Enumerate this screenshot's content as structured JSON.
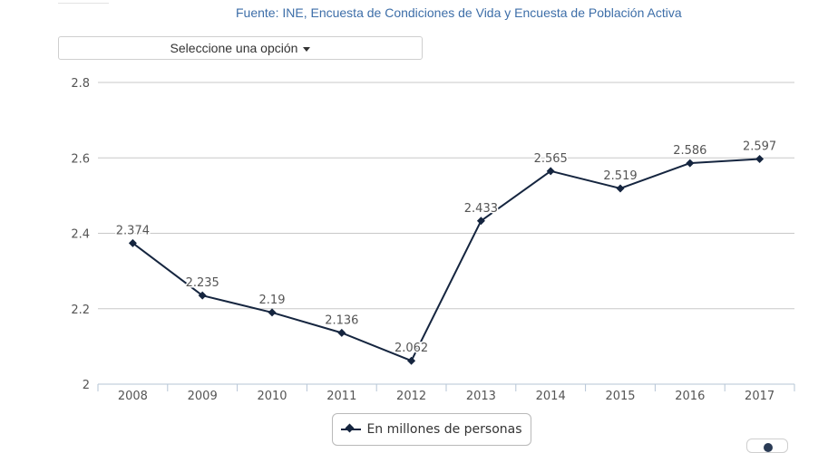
{
  "source_text": "Fuente: INE, Encuesta de Condiciones de Vida y Encuesta de Población Activa",
  "selector": {
    "label": "Seleccione una opción",
    "icon": "caret-down-icon"
  },
  "legend": {
    "label": "En millones de personas",
    "icon": "line-diamond-marker-icon"
  },
  "colors": {
    "series": "#15253f",
    "grid": "#c8c8c8",
    "axis_text": "#555555",
    "source": "#3d6ea8"
  },
  "chart_data": {
    "type": "line",
    "categories": [
      "2008",
      "2009",
      "2010",
      "2011",
      "2012",
      "2013",
      "2014",
      "2015",
      "2016",
      "2017"
    ],
    "series": [
      {
        "name": "En millones de personas",
        "values": [
          2.374,
          2.235,
          2.19,
          2.136,
          2.062,
          2.433,
          2.565,
          2.519,
          2.586,
          2.597
        ],
        "labels": [
          "2.374",
          "2.235",
          "2.19",
          "2.136",
          "2.062",
          "2.433",
          "2.565",
          "2.519",
          "2.586",
          "2.597"
        ]
      }
    ],
    "ylim": [
      2,
      2.8
    ],
    "yticks": [
      "2",
      "2.2",
      "2.4",
      "2.6",
      "2.8"
    ],
    "grid": true,
    "legend_position": "bottom-center",
    "marker": "diamond"
  }
}
